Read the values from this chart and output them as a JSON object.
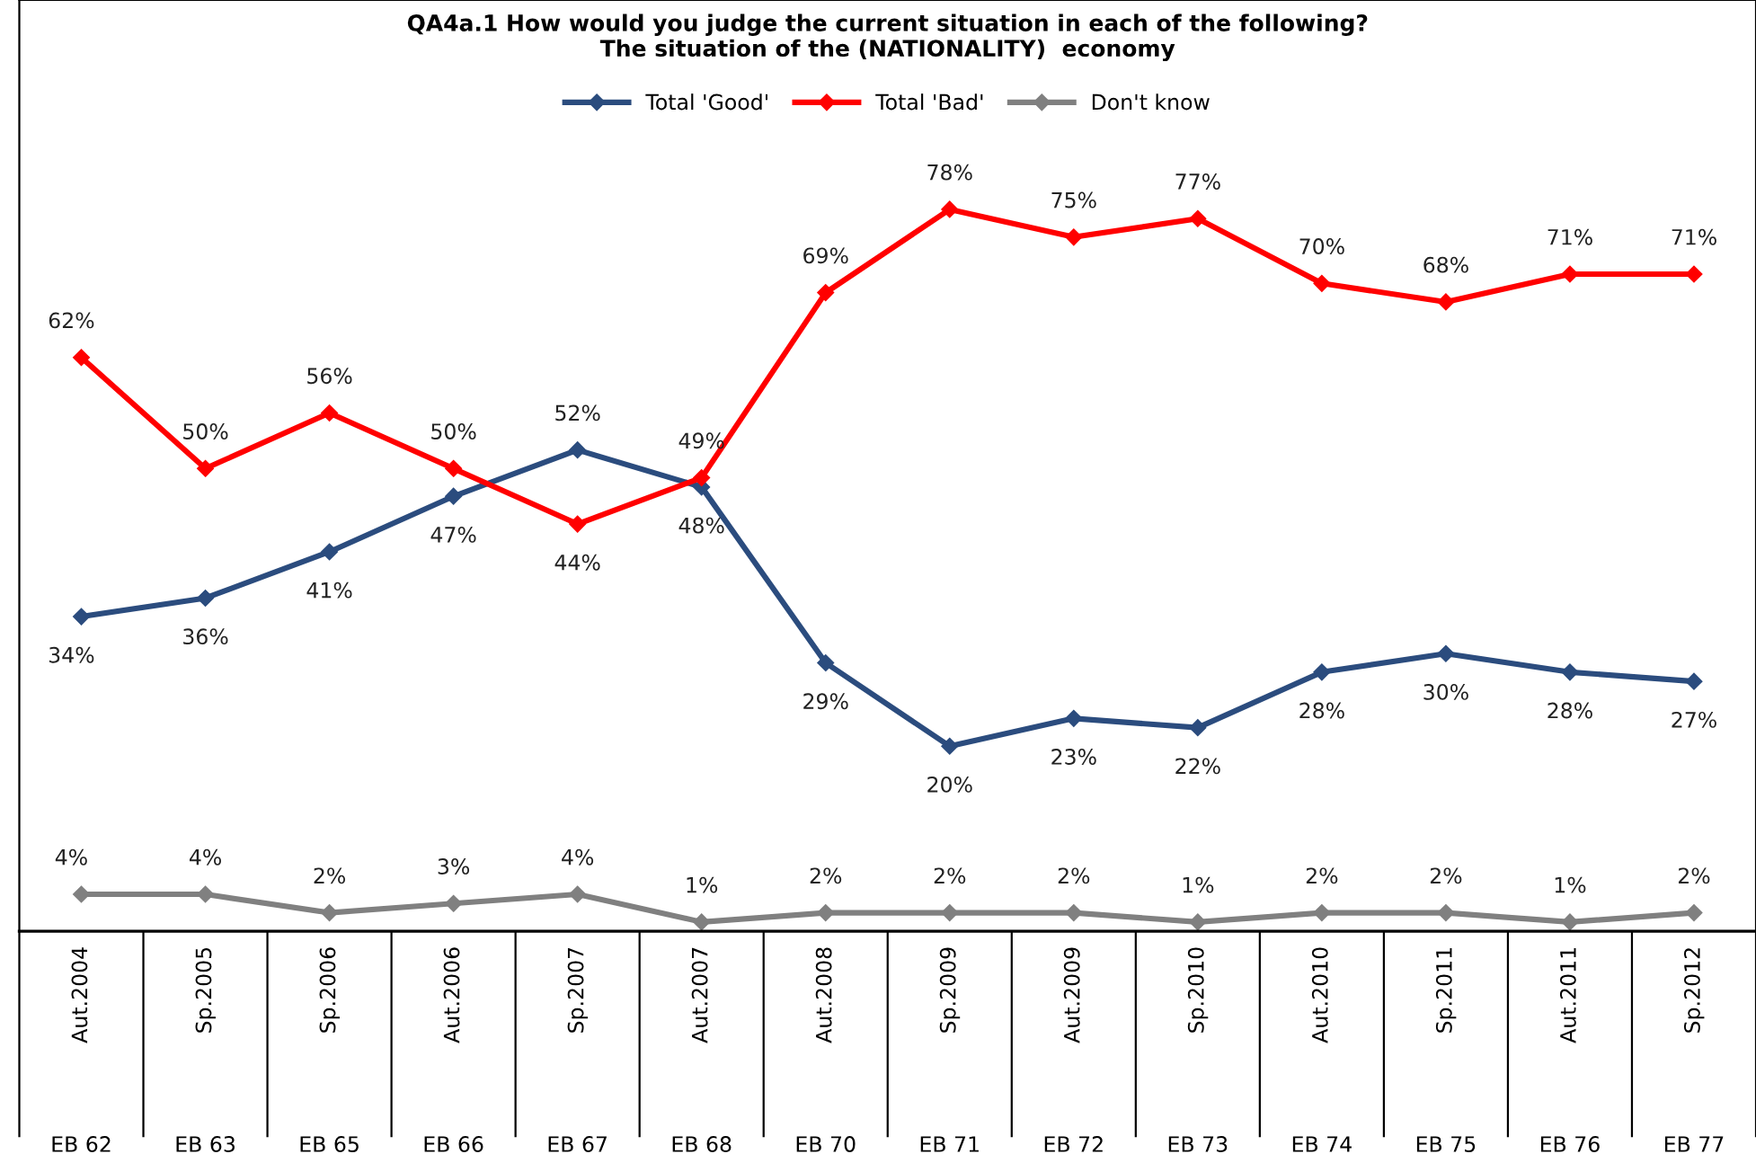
{
  "chart_data": {
    "type": "line",
    "title": "QA4a.1 How would you judge the current situation in each of the following?\nThe situation of the (NATIONALITY)  economy",
    "categories": [
      "Aut.2004",
      "Sp.2005",
      "Sp.2006",
      "Aut.2006",
      "Sp.2007",
      "Aut.2007",
      "Aut.2008",
      "Sp.2009",
      "Aut.2009",
      "Sp.2010",
      "Aut.2010",
      "Sp.2011",
      "Aut.2011",
      "Sp.2012"
    ],
    "annotations": [
      "EB 62",
      "EB 63",
      "EB 65",
      "EB 66",
      "EB 67",
      "EB 68",
      "EB 70",
      "EB 71",
      "EB 72",
      "EB 73",
      "EB 74",
      "EB 75",
      "EB 76",
      "EB 77"
    ],
    "series": [
      {
        "name": "Total 'Good'",
        "color": "#2b4c7e",
        "values": [
          34,
          36,
          41,
          47,
          52,
          48,
          29,
          20,
          23,
          22,
          28,
          30,
          28,
          27
        ],
        "value_labels": [
          "34%",
          "36%",
          "41%",
          "47%",
          "52%",
          "48%",
          "29%",
          "20%",
          "23%",
          "22%",
          "28%",
          "30%",
          "28%",
          "27%"
        ]
      },
      {
        "name": "Total 'Bad'",
        "color": "#ff0000",
        "values": [
          62,
          50,
          56,
          50,
          44,
          49,
          69,
          78,
          75,
          77,
          70,
          68,
          71,
          71
        ],
        "value_labels": [
          "62%",
          "50%",
          "56%",
          "50%",
          "44%",
          "49%",
          "69%",
          "78%",
          "75%",
          "77%",
          "70%",
          "68%",
          "71%",
          "71%"
        ]
      },
      {
        "name": "Don't know",
        "color": "#808080",
        "values": [
          4,
          4,
          2,
          3,
          4,
          1,
          2,
          2,
          2,
          1,
          2,
          2,
          1,
          2
        ],
        "value_labels": [
          "4%",
          "4%",
          "2%",
          "3%",
          "4%",
          "1%",
          "2%",
          "2%",
          "2%",
          "1%",
          "2%",
          "2%",
          "1%",
          "2%"
        ]
      }
    ],
    "legend": "top",
    "marker": "diamond",
    "line_style": "solid"
  }
}
